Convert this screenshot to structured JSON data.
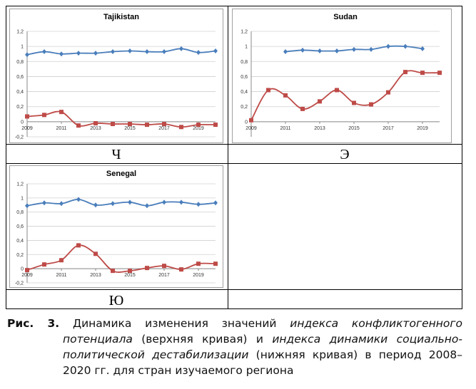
{
  "chart_data": [
    {
      "type": "line",
      "title": "Tajikistan",
      "x": [
        2009,
        2010,
        2011,
        2012,
        2013,
        2014,
        2015,
        2016,
        2017,
        2018,
        2019,
        2020
      ],
      "series": [
        {
          "color": "#4a7ebb",
          "marker": "diamond",
          "values": [
            0.89,
            0.93,
            0.9,
            0.91,
            0.91,
            0.93,
            0.94,
            0.93,
            0.93,
            0.97,
            0.92,
            0.94
          ]
        },
        {
          "color": "#be4b48",
          "marker": "square",
          "values": [
            0.07,
            0.09,
            0.13,
            -0.05,
            -0.02,
            -0.03,
            -0.03,
            -0.04,
            -0.03,
            -0.07,
            -0.04,
            -0.04
          ]
        }
      ],
      "xlim": [
        2009,
        2020
      ],
      "xticks": [
        2009,
        2011,
        2013,
        2015,
        2017,
        2019
      ],
      "ylim": [
        -0.2,
        1.2
      ],
      "yticks": [
        {
          "value": -0.2,
          "label": "-0,2"
        },
        0,
        {
          "value": 0.2,
          "label": "0,2"
        },
        {
          "value": 0.4,
          "label": "0,4"
        },
        {
          "value": 0.6,
          "label": "0,6"
        },
        {
          "value": 0.8,
          "label": "0,8"
        },
        1,
        {
          "value": 1.2,
          "label": "1,2"
        }
      ],
      "grid": true
    },
    {
      "type": "line",
      "title": "Sudan",
      "x": [
        2009,
        2010,
        2011,
        2012,
        2013,
        2014,
        2015,
        2016,
        2017,
        2018,
        2019,
        2020
      ],
      "series": [
        {
          "color": "#4a7ebb",
          "marker": "diamond",
          "values": [
            null,
            null,
            0.93,
            0.95,
            0.94,
            0.94,
            0.96,
            0.96,
            1.0,
            1.0,
            0.97,
            null
          ]
        },
        {
          "color": "#be4b48",
          "marker": "square",
          "values": [
            0.02,
            0.42,
            0.35,
            0.17,
            0.27,
            0.42,
            0.25,
            0.23,
            0.39,
            0.66,
            0.65,
            0.65
          ]
        }
      ],
      "xlim": [
        2009,
        2020
      ],
      "xticks": [
        2009,
        2011,
        2013,
        2015,
        2017,
        2019
      ],
      "ylim": [
        -0.2,
        1.2
      ],
      "yticks": [
        0,
        {
          "value": 0.2,
          "label": "0,2"
        },
        {
          "value": 0.4,
          "label": "0,4"
        },
        {
          "value": 0.6,
          "label": "0,6"
        },
        {
          "value": 0.8,
          "label": "0,8"
        },
        1,
        {
          "value": 1.2,
          "label": "1,2"
        }
      ],
      "grid": true
    },
    {
      "type": "line",
      "title": "Senegal",
      "x": [
        2009,
        2010,
        2011,
        2012,
        2013,
        2014,
        2015,
        2016,
        2017,
        2018,
        2019,
        2020
      ],
      "series": [
        {
          "color": "#4a7ebb",
          "marker": "diamond",
          "values": [
            0.89,
            0.93,
            0.92,
            0.98,
            0.9,
            0.92,
            0.94,
            0.89,
            0.94,
            0.94,
            0.91,
            0.93
          ]
        },
        {
          "color": "#be4b48",
          "marker": "square",
          "values": [
            -0.02,
            0.06,
            0.12,
            0.33,
            0.21,
            -0.03,
            -0.03,
            0.01,
            0.04,
            -0.01,
            0.07,
            0.07
          ]
        }
      ],
      "xlim": [
        2009,
        2020
      ],
      "xticks": [
        2009,
        2011,
        2013,
        2015,
        2017,
        2019
      ],
      "ylim": [
        -0.2,
        1.2
      ],
      "yticks": [
        {
          "value": -0.2,
          "label": "-0,2"
        },
        0,
        {
          "value": 0.2,
          "label": "0,2"
        },
        {
          "value": 0.4,
          "label": "0,4"
        },
        {
          "value": 0.6,
          "label": "0,6"
        },
        {
          "value": 0.8,
          "label": "0,8"
        },
        1,
        {
          "value": 1.2,
          "label": "1,2"
        }
      ],
      "grid": true
    }
  ],
  "table": {
    "labels": [
      "Ч",
      "Э",
      "Ю"
    ]
  },
  "caption": {
    "label": "Рис. 3.",
    "parts": [
      " Динамика изменения значений ",
      "индекса конфликтогенного потенциала",
      " (верхняя кривая) и ",
      "индекса динамики социально-политической дестабилизации",
      " (нижняя кривая) в период 2008–2020 гг. для стран изучаемого региона"
    ]
  }
}
